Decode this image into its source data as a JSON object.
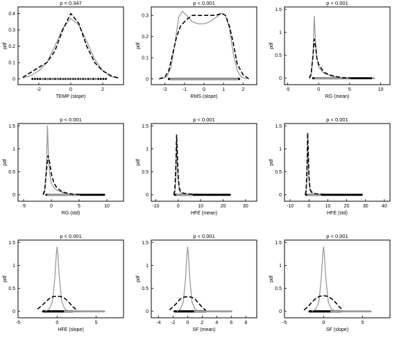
{
  "figure": {
    "ylabel": "pdf"
  },
  "chart_data": [
    {
      "type": "line",
      "title": "p = 0.347",
      "xlabel": "TEMP (slope)",
      "xlim": [
        -3.3,
        3.3
      ],
      "ylim": [
        -0.035,
        0.44
      ],
      "xticks": [
        -2,
        0,
        2
      ],
      "xtick_labels": [
        "-2",
        "0",
        "2"
      ],
      "yticks": [
        0,
        0.1,
        0.2,
        0.3,
        0.4
      ],
      "ytick_labels": [
        "0",
        "0.1",
        "0.2",
        "0.3",
        "0.4"
      ],
      "series": [
        {
          "style": "solid",
          "color": "#999999",
          "x": [
            -3,
            -2.5,
            -2,
            -1.5,
            -1,
            -0.5,
            0,
            0.5,
            1,
            1.5,
            2,
            2.5,
            3
          ],
          "y": [
            0.005,
            0.02,
            0.05,
            0.1,
            0.2,
            0.31,
            0.37,
            0.33,
            0.23,
            0.12,
            0.05,
            0.015,
            0.005
          ]
        },
        {
          "style": "dashed",
          "color": "#000000",
          "x": [
            -3,
            -2.5,
            -2,
            -1.5,
            -1,
            -0.5,
            0,
            0.5,
            1,
            1.5,
            2,
            2.5,
            3
          ],
          "y": [
            0.01,
            0.04,
            0.07,
            0.1,
            0.17,
            0.3,
            0.4,
            0.34,
            0.2,
            0.1,
            0.05,
            0.02,
            0.005
          ]
        }
      ],
      "rug": [
        {
          "color": "#000000",
          "from": -2.4,
          "to": 2.2,
          "n": 30
        },
        {
          "color": "#999999",
          "from": -1.8,
          "to": 1.6,
          "n": 12
        }
      ]
    },
    {
      "type": "line",
      "title": "p < 0.001",
      "xlabel": "RMS (slope)",
      "xlim": [
        -2.7,
        2.7
      ],
      "ylim": [
        -0.027,
        0.34
      ],
      "xticks": [
        -2,
        -1,
        0,
        1,
        2
      ],
      "xtick_labels": [
        "-2",
        "-1",
        "0",
        "1",
        "2"
      ],
      "yticks": [
        0,
        0.1,
        0.2,
        0.3
      ],
      "ytick_labels": [
        "0",
        "0.1",
        "0.2",
        "0.3"
      ],
      "series": [
        {
          "style": "solid",
          "color": "#999999",
          "x": [
            -2.2,
            -1.9,
            -1.7,
            -1.5,
            -1.3,
            -1.1,
            -0.9,
            -0.6,
            -0.3,
            0,
            0.3,
            0.6,
            0.9,
            1.1,
            1.3,
            1.5,
            1.7,
            1.9,
            2.2
          ],
          "y": [
            0,
            0.01,
            0.05,
            0.16,
            0.29,
            0.32,
            0.3,
            0.27,
            0.26,
            0.26,
            0.27,
            0.29,
            0.31,
            0.3,
            0.24,
            0.12,
            0.04,
            0.01,
            0
          ]
        },
        {
          "style": "dashed",
          "color": "#000000",
          "x": [
            -2.3,
            -2,
            -1.8,
            -1.6,
            -1.4,
            -1.2,
            -0.9,
            -0.6,
            -0.3,
            0,
            0.3,
            0.6,
            0.9,
            1.1,
            1.3,
            1.5,
            1.7,
            2,
            2.3
          ],
          "y": [
            0,
            0.01,
            0.04,
            0.12,
            0.2,
            0.25,
            0.28,
            0.3,
            0.3,
            0.3,
            0.3,
            0.3,
            0.31,
            0.3,
            0.25,
            0.17,
            0.07,
            0.02,
            0
          ]
        }
      ],
      "rug": [
        {
          "color": "#000000",
          "from": -1.8,
          "to": 1.8,
          "n": 160
        },
        {
          "color": "#999999",
          "from": -1.7,
          "to": 1.7,
          "n": 40
        }
      ]
    },
    {
      "type": "line",
      "title": "p < 0.001",
      "xlabel": "RG (mean)",
      "xlim": [
        -5.5,
        11.5
      ],
      "ylim": [
        -0.14,
        1.55
      ],
      "xticks": [
        -5,
        0,
        5,
        10
      ],
      "xtick_labels": [
        "-5",
        "0",
        "5",
        "10"
      ],
      "yticks": [
        0,
        0.5,
        1,
        1.5
      ],
      "ytick_labels": [
        "0",
        "0.5",
        "1",
        "1.5"
      ],
      "series": [
        {
          "style": "solid",
          "color": "#999999",
          "x": [
            -1.5,
            -1.2,
            -0.9,
            -0.7,
            -0.5,
            -0.3,
            0,
            0.5,
            1,
            2,
            3,
            4,
            5
          ],
          "y": [
            0,
            0.05,
            0.5,
            1.35,
            0.8,
            0.45,
            0.25,
            0.15,
            0.1,
            0.05,
            0.02,
            0.01,
            0
          ]
        },
        {
          "style": "dashed",
          "color": "#000000",
          "x": [
            -1.5,
            -1.2,
            -0.9,
            -0.7,
            -0.5,
            -0.3,
            0,
            0.5,
            1,
            2,
            3,
            4,
            5,
            7,
            9
          ],
          "y": [
            0,
            0.1,
            0.5,
            0.85,
            0.7,
            0.45,
            0.3,
            0.2,
            0.12,
            0.06,
            0.03,
            0.01,
            0.005,
            0.003,
            0
          ]
        }
      ],
      "rug": [
        {
          "color": "#000000",
          "from": -0.9,
          "to": 8.5,
          "n": 60
        },
        {
          "color": "#999999",
          "from": -0.5,
          "to": 5,
          "n": 20
        }
      ]
    },
    {
      "type": "line",
      "title": "p < 0.001",
      "xlabel": "RG (std)",
      "xlim": [
        -6,
        13
      ],
      "ylim": [
        -0.14,
        1.55
      ],
      "xticks": [
        -5,
        0,
        5,
        10
      ],
      "xtick_labels": [
        "-5",
        "0",
        "5",
        "10"
      ],
      "yticks": [
        0,
        0.5,
        1,
        1.5
      ],
      "ytick_labels": [
        "0",
        "0.5",
        "1",
        "1.5"
      ],
      "series": [
        {
          "style": "solid",
          "color": "#999999",
          "x": [
            -1.5,
            -1.2,
            -0.9,
            -0.7,
            -0.5,
            -0.3,
            0,
            0.5,
            1,
            2,
            3,
            4,
            5
          ],
          "y": [
            0,
            0.05,
            0.6,
            1.5,
            0.8,
            0.45,
            0.25,
            0.15,
            0.1,
            0.05,
            0.02,
            0.01,
            0
          ]
        },
        {
          "style": "dashed",
          "color": "#000000",
          "x": [
            -1.5,
            -1.2,
            -0.9,
            -0.6,
            -0.3,
            0,
            0.5,
            1,
            2,
            3,
            4,
            6,
            9
          ],
          "y": [
            0,
            0.1,
            0.5,
            0.85,
            0.7,
            0.45,
            0.25,
            0.15,
            0.06,
            0.03,
            0.01,
            0.005,
            0
          ]
        }
      ],
      "rug": [
        {
          "color": "#000000",
          "from": -0.9,
          "to": 9.5,
          "n": 60
        },
        {
          "color": "#999999",
          "from": -0.6,
          "to": 5,
          "n": 20
        }
      ]
    },
    {
      "type": "line",
      "title": "p < 0.001",
      "xlabel": "HFE (mean)",
      "xlim": [
        -12,
        35
      ],
      "ylim": [
        -0.14,
        1.55
      ],
      "xticks": [
        -10,
        0,
        10,
        20,
        30
      ],
      "xtick_labels": [
        "-10",
        "0",
        "10",
        "20",
        "30"
      ],
      "yticks": [
        0,
        0.5,
        1,
        1.5
      ],
      "ytick_labels": [
        "0",
        "0.5",
        "1",
        "1.5"
      ],
      "series": [
        {
          "style": "solid",
          "color": "#999999",
          "x": [
            -2,
            -1.5,
            -1,
            -0.7,
            -0.3,
            0,
            0.5,
            1,
            2,
            3
          ],
          "y": [
            0,
            0.05,
            0.4,
            1.2,
            0.6,
            0.3,
            0.1,
            0.05,
            0.02,
            0
          ]
        },
        {
          "style": "dashed",
          "color": "#000000",
          "x": [
            -2,
            -1.5,
            -1,
            -0.7,
            -0.3,
            0,
            0.5,
            1,
            2,
            4,
            8,
            14,
            20,
            24
          ],
          "y": [
            0,
            0.1,
            0.7,
            1.3,
            0.8,
            0.4,
            0.15,
            0.08,
            0.04,
            0.02,
            0.01,
            0.005,
            0.003,
            0
          ]
        }
      ],
      "rug": [
        {
          "color": "#000000",
          "from": -1.5,
          "to": 23,
          "n": 70
        },
        {
          "color": "#999999",
          "from": -0.5,
          "to": 6,
          "n": 20
        }
      ]
    },
    {
      "type": "line",
      "title": "p < 0.001",
      "xlabel": "HFE (std)",
      "xlim": [
        -13,
        43
      ],
      "ylim": [
        -0.14,
        1.55
      ],
      "xticks": [
        -10,
        0,
        10,
        20,
        30,
        40
      ],
      "xtick_labels": [
        "-10",
        "0",
        "10",
        "20",
        "30",
        "40"
      ],
      "yticks": [
        0,
        0.5,
        1,
        1.5
      ],
      "ytick_labels": [
        "0",
        "0.5",
        "1",
        "1.5"
      ],
      "series": [
        {
          "style": "solid",
          "color": "#999999",
          "x": [
            -2,
            -1.5,
            -1,
            -0.7,
            -0.3,
            0,
            0.5,
            1,
            2,
            3
          ],
          "y": [
            0,
            0.05,
            0.4,
            1.1,
            0.6,
            0.3,
            0.1,
            0.05,
            0.02,
            0
          ]
        },
        {
          "style": "dashed",
          "color": "#000000",
          "x": [
            -2,
            -1.5,
            -1,
            -0.7,
            -0.3,
            0,
            0.5,
            1,
            2,
            4,
            8,
            14,
            22,
            28
          ],
          "y": [
            0,
            0.1,
            0.7,
            1.35,
            0.8,
            0.4,
            0.15,
            0.08,
            0.04,
            0.02,
            0.01,
            0.005,
            0.003,
            0
          ]
        }
      ],
      "rug": [
        {
          "color": "#000000",
          "from": -1.5,
          "to": 28,
          "n": 70
        },
        {
          "color": "#999999",
          "from": -0.5,
          "to": 6,
          "n": 20
        }
      ]
    },
    {
      "type": "line",
      "title": "p < 0.001",
      "xlabel": "HFE (slope)",
      "xlim": [
        -5,
        8.5
      ],
      "ylim": [
        -0.14,
        1.55
      ],
      "xticks": [
        -5,
        0,
        5
      ],
      "xtick_labels": [
        "-5",
        "0",
        "5"
      ],
      "yticks": [
        0,
        0.5,
        1,
        1.5
      ],
      "ytick_labels": [
        "0",
        "0.5",
        "1",
        "1.5"
      ],
      "series": [
        {
          "style": "solid",
          "color": "#999999",
          "x": [
            -1.5,
            -1,
            -0.6,
            -0.3,
            -0.1,
            0,
            0.1,
            0.3,
            0.6,
            1,
            1.5,
            2
          ],
          "y": [
            0,
            0.05,
            0.2,
            0.7,
            1.25,
            1.4,
            1.25,
            0.7,
            0.2,
            0.05,
            0.01,
            0
          ]
        },
        {
          "style": "dashed",
          "color": "#000000",
          "x": [
            -2.5,
            -2,
            -1.5,
            -1,
            -0.5,
            0,
            0.5,
            1,
            1.5,
            2,
            2.5
          ],
          "y": [
            0.05,
            0.12,
            0.2,
            0.28,
            0.32,
            0.33,
            0.32,
            0.28,
            0.2,
            0.1,
            0.03
          ]
        }
      ],
      "rug": [
        {
          "color": "#000000",
          "from": -1.8,
          "to": 2,
          "n": 80
        },
        {
          "color": "#999999",
          "from": 1,
          "to": 6,
          "n": 30
        }
      ]
    },
    {
      "type": "line",
      "title": "p < 0.001",
      "xlabel": "SF (mean)",
      "xlim": [
        -5,
        9.5
      ],
      "ylim": [
        -0.14,
        1.55
      ],
      "xticks": [
        -4,
        -2,
        0,
        2,
        4,
        6,
        8
      ],
      "xtick_labels": [
        "-4",
        "-2",
        "0",
        "2",
        "4",
        "6",
        "8"
      ],
      "yticks": [
        0,
        0.5,
        1,
        1.5
      ],
      "ytick_labels": [
        "0",
        "0.5",
        "1",
        "1.5"
      ],
      "series": [
        {
          "style": "solid",
          "color": "#999999",
          "x": [
            -1.5,
            -1,
            -0.6,
            -0.3,
            -0.1,
            0,
            0.1,
            0.3,
            0.6,
            1,
            1.5,
            2
          ],
          "y": [
            0,
            0.05,
            0.2,
            0.7,
            1.25,
            1.4,
            1.25,
            0.7,
            0.2,
            0.05,
            0.01,
            0
          ]
        },
        {
          "style": "dashed",
          "color": "#000000",
          "x": [
            -2.5,
            -2,
            -1.5,
            -1,
            -0.5,
            0,
            0.5,
            1,
            1.5,
            2,
            2.5
          ],
          "y": [
            0.03,
            0.1,
            0.18,
            0.27,
            0.31,
            0.32,
            0.31,
            0.27,
            0.18,
            0.09,
            0.02
          ]
        }
      ],
      "rug": [
        {
          "color": "#000000",
          "from": -1.8,
          "to": 2.5,
          "n": 80
        },
        {
          "color": "#999999",
          "from": 1,
          "to": 6,
          "n": 30
        }
      ]
    },
    {
      "type": "line",
      "title": "p < 0.001",
      "xlabel": "SF (slope)",
      "xlim": [
        -5,
        8.5
      ],
      "ylim": [
        -0.14,
        1.55
      ],
      "xticks": [
        -5,
        0,
        5
      ],
      "xtick_labels": [
        "-5",
        "0",
        "5"
      ],
      "yticks": [
        0,
        0.5,
        1,
        1.5
      ],
      "ytick_labels": [
        "0",
        "0.5",
        "1",
        "1.5"
      ],
      "series": [
        {
          "style": "solid",
          "color": "#999999",
          "x": [
            -1.5,
            -1,
            -0.6,
            -0.3,
            -0.1,
            0,
            0.1,
            0.3,
            0.6,
            1,
            1.5,
            2
          ],
          "y": [
            0,
            0.05,
            0.2,
            0.7,
            1.25,
            1.4,
            1.25,
            0.7,
            0.2,
            0.05,
            0.01,
            0
          ]
        },
        {
          "style": "dashed",
          "color": "#000000",
          "x": [
            -2.5,
            -2,
            -1.5,
            -1,
            -0.5,
            0,
            0.5,
            1,
            1.5,
            2,
            2.5
          ],
          "y": [
            0.03,
            0.1,
            0.2,
            0.28,
            0.33,
            0.34,
            0.33,
            0.28,
            0.2,
            0.1,
            0.02
          ]
        }
      ],
      "rug": [
        {
          "color": "#000000",
          "from": -1.8,
          "to": 2.2,
          "n": 80
        },
        {
          "color": "#999999",
          "from": 1,
          "to": 6,
          "n": 30
        }
      ]
    }
  ]
}
